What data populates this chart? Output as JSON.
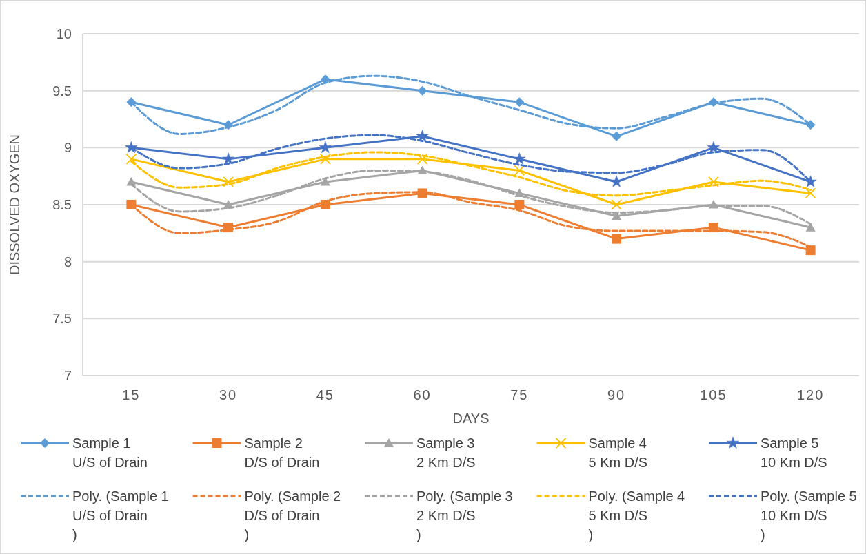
{
  "chart_data": {
    "type": "line",
    "xlabel": "DAYS",
    "ylabel": "DISSOLVED OXYGEN",
    "xlim": [
      7.5,
      127.5
    ],
    "xticks": [
      15,
      30,
      45,
      60,
      75,
      90,
      105,
      120
    ],
    "ylim": [
      7,
      10
    ],
    "yticks": [
      7,
      7.5,
      8,
      8.5,
      9,
      9.5,
      10
    ],
    "grid": "y",
    "legend": "bottom",
    "series": [
      {
        "name": "Sample 1\nU/S of Drain",
        "color": "#5b9bd5",
        "marker": "diamond",
        "x": [
          15,
          30,
          45,
          60,
          75,
          90,
          105,
          120
        ],
        "values": [
          9.4,
          9.2,
          9.6,
          9.5,
          9.4,
          9.1,
          9.4,
          9.2
        ]
      },
      {
        "name": "Sample 2\nD/S of Drain",
        "color": "#ed7d31",
        "marker": "square",
        "x": [
          15,
          30,
          45,
          60,
          75,
          90,
          105,
          120
        ],
        "values": [
          8.5,
          8.3,
          8.5,
          8.6,
          8.5,
          8.2,
          8.3,
          8.1
        ]
      },
      {
        "name": "Sample 3\n2 Km D/S",
        "color": "#a5a5a5",
        "marker": "triangle",
        "x": [
          15,
          30,
          45,
          60,
          75,
          90,
          105,
          120
        ],
        "values": [
          8.7,
          8.5,
          8.7,
          8.8,
          8.6,
          8.4,
          8.5,
          8.3
        ]
      },
      {
        "name": "Sample 4\n5 Km D/S",
        "color": "#ffc000",
        "marker": "cross",
        "x": [
          15,
          30,
          45,
          60,
          75,
          90,
          105,
          120
        ],
        "values": [
          8.9,
          8.7,
          8.9,
          8.9,
          8.8,
          8.5,
          8.7,
          8.6
        ]
      },
      {
        "name": "Sample 5\n10 Km D/S",
        "color": "#4472c4",
        "marker": "star",
        "x": [
          15,
          30,
          45,
          60,
          75,
          90,
          105,
          120
        ],
        "values": [
          9,
          8.9,
          9,
          9.1,
          8.9,
          8.7,
          9,
          8.7
        ]
      },
      {
        "name": "Poly. (Sample 1\nU/S of Drain\n)",
        "color": "#5b9bd5",
        "marker": "none",
        "line_style": "dashed",
        "x": [
          15,
          22.5,
          30,
          37.5,
          45,
          52.5,
          60,
          67.5,
          75,
          82.5,
          90,
          97.5,
          105,
          112.5,
          120
        ],
        "values": [
          9.4,
          9.12,
          9.18,
          9.33,
          9.57,
          9.63,
          9.58,
          9.45,
          9.33,
          9.21,
          9.17,
          9.27,
          9.39,
          9.43,
          9.2
        ]
      },
      {
        "name": "Poly. (Sample 2\nD/S of Drain\n)",
        "color": "#ed7d31",
        "marker": "none",
        "line_style": "dashed",
        "x": [
          15,
          22.5,
          30,
          37.5,
          45,
          52.5,
          60,
          67.5,
          75,
          82.5,
          90,
          97.5,
          105,
          112.5,
          120
        ],
        "values": [
          8.5,
          8.25,
          8.28,
          8.35,
          8.53,
          8.6,
          8.61,
          8.52,
          8.45,
          8.31,
          8.27,
          8.27,
          8.27,
          8.26,
          8.13
        ]
      },
      {
        "name": "Poly. (Sample 3\n2 Km D/S\n)",
        "color": "#a5a5a5",
        "marker": "none",
        "line_style": "dashed",
        "x": [
          15,
          22.5,
          30,
          37.5,
          45,
          52.5,
          60,
          67.5,
          75,
          82.5,
          90,
          97.5,
          105,
          112.5,
          120
        ],
        "values": [
          8.68,
          8.44,
          8.47,
          8.58,
          8.73,
          8.8,
          8.79,
          8.71,
          8.58,
          8.48,
          8.43,
          8.45,
          8.49,
          8.49,
          8.33
        ]
      },
      {
        "name": "Poly. (Sample 4\n5 Km D/S\n)",
        "color": "#ffc000",
        "marker": "none",
        "line_style": "dashed",
        "x": [
          15,
          22.5,
          30,
          37.5,
          45,
          52.5,
          60,
          67.5,
          75,
          82.5,
          90,
          97.5,
          105,
          112.5,
          120
        ],
        "values": [
          8.88,
          8.65,
          8.68,
          8.82,
          8.92,
          8.96,
          8.93,
          8.84,
          8.74,
          8.62,
          8.58,
          8.62,
          8.67,
          8.71,
          8.63
        ]
      },
      {
        "name": "Poly. (Sample 5\n10 Km D/S\n)",
        "color": "#4472c4",
        "marker": "none",
        "line_style": "dashed",
        "x": [
          15,
          22.5,
          30,
          37.5,
          45,
          52.5,
          60,
          67.5,
          75,
          82.5,
          90,
          97.5,
          105,
          112.5,
          120
        ],
        "values": [
          9,
          8.82,
          8.86,
          8.99,
          9.08,
          9.11,
          9.06,
          8.95,
          8.85,
          8.79,
          8.78,
          8.85,
          8.96,
          8.98,
          8.7
        ]
      }
    ]
  }
}
